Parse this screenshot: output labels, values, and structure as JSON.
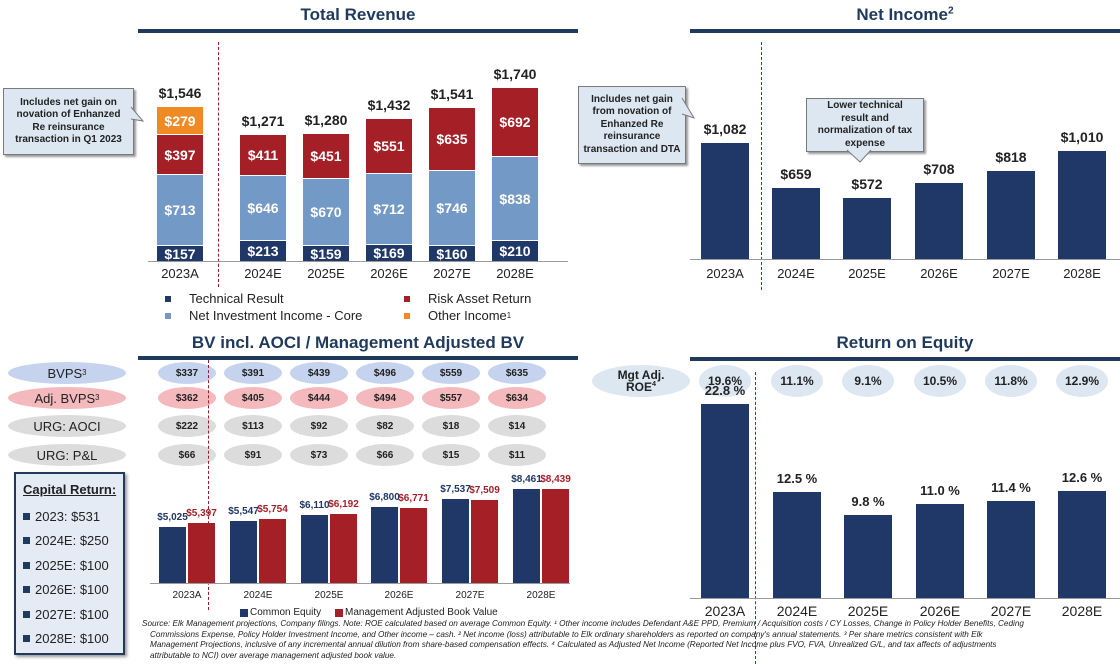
{
  "colors": {
    "navy": "#1f3868",
    "title": "#1f3a5c",
    "red": "#a51f27",
    "lightblue": "#7399c6",
    "orange": "#ef8a24",
    "dashed": "#9b1c24"
  },
  "chart_data": [
    {
      "id": "total_revenue",
      "type": "bar",
      "stacked": true,
      "title": "Total Revenue",
      "categories": [
        "2023A",
        "2024E",
        "2025E",
        "2026E",
        "2027E",
        "2028E"
      ],
      "series": [
        {
          "name": "Technical Result",
          "color": "#1f3868",
          "values": [
            157,
            213,
            159,
            169,
            160,
            210
          ],
          "labels": [
            "$157",
            "$213",
            "$159",
            "$169",
            "$160",
            "$210"
          ]
        },
        {
          "name": "Net Investment Income - Core",
          "color": "#7399c6",
          "values": [
            713,
            646,
            670,
            712,
            746,
            838
          ],
          "labels": [
            "$713",
            "$646",
            "$670",
            "$712",
            "$746",
            "$838"
          ]
        },
        {
          "name": "Risk Asset Return",
          "color": "#a51f27",
          "values": [
            397,
            411,
            451,
            551,
            635,
            692
          ],
          "labels": [
            "$397",
            "$411",
            "$451",
            "$551",
            "$635",
            "$692"
          ]
        },
        {
          "name": "Other Income",
          "footnote": "1",
          "color": "#ef8a24",
          "values": [
            279,
            0,
            0,
            0,
            0,
            0
          ],
          "labels": [
            "$279",
            "",
            "",
            "",
            "",
            ""
          ]
        }
      ],
      "totals": [
        1546,
        1271,
        1280,
        1432,
        1541,
        1740
      ],
      "total_labels": [
        "$1,546",
        "$1,271",
        "$1,280",
        "$1,432",
        "$1,541",
        "$1,740"
      ],
      "legend": "bottom",
      "annotation": "Includes net gain on novation of Enhanzed Re reinsurance transaction in Q1 2023"
    },
    {
      "id": "net_income",
      "type": "bar",
      "title": "Net Income",
      "title_footnote": "2",
      "categories": [
        "2023A",
        "2024E",
        "2025E",
        "2026E",
        "2027E",
        "2028E"
      ],
      "values": [
        1082,
        659,
        572,
        708,
        818,
        1010
      ],
      "labels": [
        "$1,082",
        "$659",
        "$572",
        "$708",
        "$818",
        "$1,010"
      ],
      "annotations": [
        "Includes net gain from novation of Enhanzed Re reinsurance transaction and DTA",
        "Lower technical result and normalization of tax expense"
      ]
    },
    {
      "id": "book_value",
      "type": "bar",
      "title": "BV incl. AOCI / Management Adjusted BV",
      "categories": [
        "2023A",
        "2024E",
        "2025E",
        "2026E",
        "2027E",
        "2028E"
      ],
      "series": [
        {
          "name": "Common Equity",
          "color": "#1f3868",
          "values": [
            5025,
            5547,
            6110,
            6800,
            7537,
            8461
          ],
          "labels": [
            "$5,025",
            "$5,547",
            "$6,110",
            "$6,800",
            "$7,537",
            "$8,461"
          ]
        },
        {
          "name": "Management Adjusted Book Value",
          "color": "#a51f27",
          "values": [
            5397,
            5754,
            6192,
            6771,
            7509,
            8439
          ],
          "labels": [
            "$5,397",
            "$5,754",
            "$6,192",
            "$6,771",
            "$7,509",
            "$8,439"
          ]
        }
      ],
      "legend": "bottom",
      "table": {
        "rows": [
          {
            "label": "BVPS",
            "footnote": "3",
            "style": "blue",
            "values": [
              "$337",
              "$391",
              "$439",
              "$496",
              "$559",
              "$635"
            ]
          },
          {
            "label": "Adj. BVPS",
            "footnote": "3",
            "style": "pink",
            "values": [
              "$362",
              "$405",
              "$444",
              "$494",
              "$557",
              "$634"
            ]
          },
          {
            "label": "URG: AOCI",
            "footnote": "",
            "style": "gray",
            "values": [
              "$222",
              "$113",
              "$92",
              "$82",
              "$18",
              "$14"
            ]
          },
          {
            "label": "URG: P&L",
            "footnote": "",
            "style": "gray",
            "values": [
              "$66",
              "$91",
              "$73",
              "$66",
              "$15",
              "$11"
            ]
          }
        ]
      }
    },
    {
      "id": "roe",
      "type": "bar",
      "title": "Return on Equity",
      "categories": [
        "2023A",
        "2024E",
        "2025E",
        "2026E",
        "2027E",
        "2028E"
      ],
      "values": [
        22.8,
        12.5,
        9.8,
        11.0,
        11.4,
        12.6
      ],
      "labels": [
        "22.8 %",
        "12.5 %",
        "9.8 %",
        "11.0 %",
        "11.4 %",
        "12.6 %"
      ],
      "mgt_adj_roe": {
        "label_line1": "Mgt Adj.",
        "label_line2": "ROE",
        "footnote": "4",
        "values": [
          "19.6%",
          "11.1%",
          "9.1%",
          "10.5%",
          "11.8%",
          "12.9%"
        ]
      }
    }
  ],
  "capital_return": {
    "heading": "Capital Return:",
    "items": [
      "2023: $531",
      "2024E: $250",
      "2025E: $100",
      "2026E: $100",
      "2027E: $100",
      "2028E: $100"
    ]
  },
  "footnote": {
    "line1": "Source: Elk Management projections, Company filings. Note: ROE calculated based on average Common Equity. ¹ Other income includes Defendant A&E PPD, Premium / Acquisition costs / CY Losses, Change in Policy Holder Benefits, Ceding",
    "line2": "Commissions Expense, Policy Holder Investment Income, and Other income – cash. ² Net income (loss) attributable to Elk ordinary shareholders as reported on company's annual statements. ³ Per share metrics consistent with Elk",
    "line3": "Management Projections, inclusive of any incremental annual dilution from share-based compensation effects. ⁴ Calculated as Adjusted Net Income (Reported Net Income plus FVO, FVA, Unrealized G/L, and tax affects of adjustments",
    "line4": "attributable to NCI) over average management adjusted book value."
  }
}
